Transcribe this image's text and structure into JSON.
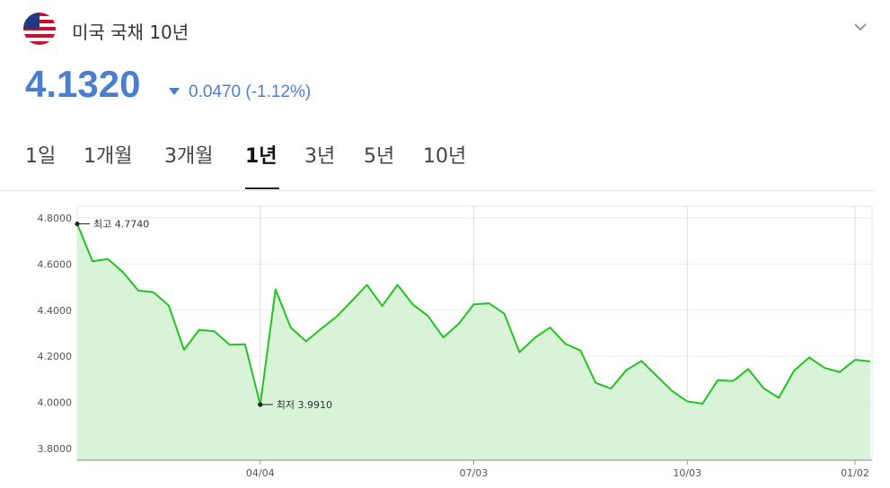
{
  "header": {
    "title": "미국 국채 10년",
    "flag_icon": "us-flag-icon",
    "expand_icon": "chevron-down-icon"
  },
  "quote": {
    "price": "4.1320",
    "change": "0.0470 (-1.12%)",
    "direction": "down",
    "color": "#4a7fd0"
  },
  "tabs": [
    {
      "label": "1일"
    },
    {
      "label": "1개월"
    },
    {
      "label": "3개월"
    },
    {
      "label": "1년",
      "active": true
    },
    {
      "label": "3년"
    },
    {
      "label": "5년"
    },
    {
      "label": "10년"
    }
  ],
  "chart_data": {
    "type": "area",
    "y_ticks": [
      "4.8000",
      "4.6000",
      "4.4000",
      "4.2000",
      "4.0000",
      "3.8000"
    ],
    "x_ticks": [
      "04/04",
      "07/03",
      "10/03",
      "01/02"
    ],
    "ylim": [
      3.75,
      4.85
    ],
    "line_color": "#22c322",
    "fill_color": "#d9f3d9",
    "values": [
      4.774,
      4.612,
      4.622,
      4.565,
      4.485,
      4.478,
      4.42,
      4.228,
      4.315,
      4.308,
      4.25,
      4.252,
      3.991,
      4.49,
      4.325,
      4.265,
      4.32,
      4.372,
      4.44,
      4.51,
      4.418,
      4.51,
      4.425,
      4.375,
      4.282,
      4.34,
      4.425,
      4.43,
      4.385,
      4.218,
      4.28,
      4.325,
      4.255,
      4.225,
      4.085,
      4.06,
      4.14,
      4.18,
      4.115,
      4.05,
      4.005,
      3.995,
      4.097,
      4.093,
      4.145,
      4.062,
      4.02,
      4.138,
      4.195,
      4.15,
      4.132,
      4.185,
      4.178
    ],
    "high": {
      "label": "최고 4.7740",
      "value": 4.774,
      "index": 0
    },
    "low": {
      "label": "최저 3.9910",
      "value": 3.991,
      "index": 12
    }
  }
}
